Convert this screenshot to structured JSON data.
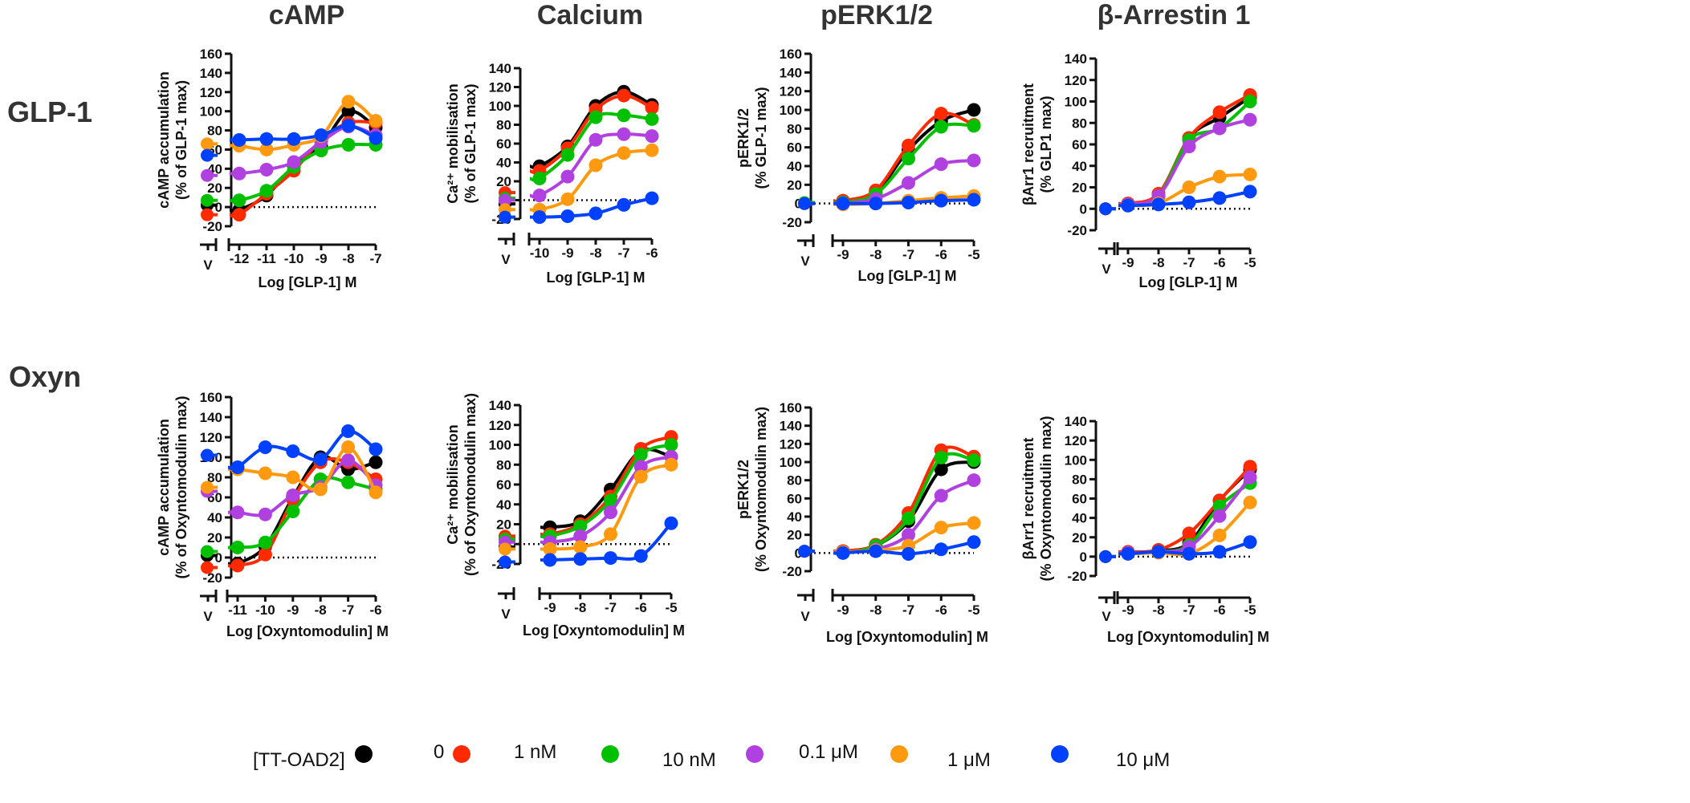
{
  "column_titles": [
    "cAMP",
    "Calcium",
    "pERK1/2",
    "β-Arrestin 1"
  ],
  "row_labels": [
    "GLP-1",
    "Oxyn"
  ],
  "legend": {
    "title": "[TT-OAD2]",
    "items": [
      {
        "label": "0",
        "color": "#000000"
      },
      {
        "label": "1 nM",
        "color": "#ff2a00"
      },
      {
        "label": "10 nM",
        "color": "#00c000"
      },
      {
        "label": "0.1 μM",
        "color": "#b040e0"
      },
      {
        "label": "1 μM",
        "color": "#ff9a10"
      },
      {
        "label": "10 μM",
        "color": "#0040ff"
      }
    ]
  },
  "chart_data": [
    {
      "type": "line",
      "ylabel": [
        "cAMP accumulation",
        "(% of GLP-1 max)"
      ],
      "xlabel": "Log [GLP-1] M",
      "vehicle_label": "V",
      "ylim": [
        -20,
        160
      ],
      "xticks": [
        -12,
        -11,
        -10,
        -9,
        -8,
        -7
      ],
      "vehicle": [
        2,
        -8,
        7,
        33,
        66,
        54
      ],
      "series": [
        [
          -3,
          12,
          43,
          64,
          100,
          83
        ],
        [
          -8,
          14,
          38,
          70,
          88,
          88
        ],
        [
          7,
          17,
          42,
          59,
          65,
          65
        ],
        [
          35,
          39,
          47,
          68,
          84,
          75
        ],
        [
          64,
          60,
          65,
          74,
          110,
          90
        ],
        [
          70,
          71,
          71,
          75,
          85,
          72
        ]
      ]
    },
    {
      "type": "line",
      "ylabel": [
        "Ca²⁺ mobilisation",
        "(% of GLP-1 max)"
      ],
      "xlabel": "Log [GLP-1] M",
      "vehicle_label": "V",
      "ylim": [
        -20,
        140
      ],
      "xticks": [
        -10,
        -9,
        -8,
        -7,
        -6
      ],
      "vehicle": [
        -4,
        8,
        2,
        0,
        -10,
        -18
      ],
      "series": [
        [
          36,
          57,
          100,
          115,
          101
        ],
        [
          31,
          55,
          96,
          111,
          98
        ],
        [
          23,
          48,
          88,
          90,
          86
        ],
        [
          5,
          25,
          64,
          70,
          68
        ],
        [
          -10,
          1,
          37,
          50,
          53
        ],
        [
          -18,
          -17,
          -14,
          -5,
          2
        ]
      ]
    },
    {
      "type": "line",
      "ylabel": [
        "pERK1/2",
        "(% GLP-1 max)"
      ],
      "xlabel": "Log [GLP-1] M",
      "vehicle_label": "V",
      "ylim": [
        -20,
        160
      ],
      "xticks": [
        -9,
        -8,
        -7,
        -6,
        -5
      ],
      "vehicle": [
        0,
        0,
        1,
        0,
        0,
        0
      ],
      "series": [
        [
          2,
          12,
          57,
          88,
          100
        ],
        [
          3,
          14,
          62,
          96,
          84
        ],
        [
          1,
          10,
          48,
          82,
          83
        ],
        [
          0,
          5,
          22,
          42,
          46
        ],
        [
          -1,
          0,
          3,
          6,
          8
        ],
        [
          0,
          0,
          1,
          3,
          4
        ]
      ]
    },
    {
      "type": "line",
      "ylabel": [
        "βArr1 recruitment",
        "(% GLP1 max)"
      ],
      "xlabel": "Log [GLP-1] M",
      "vehicle_label": "V",
      "ylim": [
        -20,
        140
      ],
      "xticks": [
        -9,
        -8,
        -7,
        -6,
        -5
      ],
      "vehicle": [
        0,
        0,
        0,
        0,
        0,
        0
      ],
      "series": [
        [
          4,
          12,
          66,
          85,
          104
        ],
        [
          5,
          14,
          66,
          90,
          106
        ],
        [
          4,
          12,
          64,
          75,
          100
        ],
        [
          4,
          12,
          58,
          75,
          83
        ],
        [
          3,
          5,
          20,
          30,
          32
        ],
        [
          3,
          4,
          6,
          10,
          16
        ]
      ]
    },
    {
      "type": "line",
      "ylabel": [
        "cAMP accumulation",
        "(% of Oxyntomodulin max)"
      ],
      "xlabel": "Log [Oxyntomodulin] M",
      "vehicle_label": "V",
      "ylim": [
        -20,
        160
      ],
      "xticks": [
        -11,
        -10,
        -9,
        -8,
        -7,
        -6
      ],
      "vehicle": [
        2,
        -10,
        6,
        66,
        70,
        102
      ],
      "series": [
        [
          -6,
          11,
          60,
          100,
          88,
          95
        ],
        [
          -8,
          3,
          58,
          95,
          95,
          78
        ],
        [
          10,
          15,
          46,
          78,
          75,
          68
        ],
        [
          45,
          43,
          62,
          70,
          97,
          72
        ],
        [
          88,
          84,
          80,
          68,
          110,
          65
        ],
        [
          90,
          110,
          106,
          98,
          126,
          108
        ]
      ]
    },
    {
      "type": "line",
      "ylabel": [
        "Ca²⁺ mobilisation",
        "(% of Oxyntomodulin max)"
      ],
      "xlabel": "Log [Oxyntomodulin] M",
      "vehicle_label": "V",
      "ylim": [
        -20,
        140
      ],
      "xticks": [
        -9,
        -8,
        -7,
        -6,
        -5
      ],
      "vehicle": [
        -3,
        8,
        5,
        2,
        -5,
        -18
      ],
      "series": [
        [
          17,
          23,
          55,
          94,
          88
        ],
        [
          10,
          20,
          48,
          96,
          108
        ],
        [
          8,
          18,
          44,
          90,
          100
        ],
        [
          2,
          8,
          32,
          78,
          88
        ],
        [
          -5,
          -3,
          10,
          68,
          80
        ],
        [
          -16,
          -15,
          -14,
          -12,
          21
        ]
      ]
    },
    {
      "type": "line",
      "ylabel": [
        "pERK1/2",
        "(% Oxyntomodulin max)"
      ],
      "xlabel": "Log [Oxyntomodulin] M",
      "vehicle_label": "V",
      "ylim": [
        -20,
        160
      ],
      "xticks": [
        -9,
        -8,
        -7,
        -6,
        -5
      ],
      "vehicle": [
        2,
        2,
        2,
        2,
        2,
        2
      ],
      "series": [
        [
          2,
          8,
          35,
          92,
          100
        ],
        [
          2,
          9,
          44,
          113,
          106
        ],
        [
          0,
          8,
          38,
          105,
          102
        ],
        [
          1,
          4,
          20,
          63,
          80
        ],
        [
          1,
          3,
          8,
          28,
          33
        ],
        [
          0,
          2,
          -1,
          4,
          12
        ]
      ]
    },
    {
      "type": "line",
      "ylabel": [
        "βArr1 recruitment",
        "(% Oxyntomodulin max)"
      ],
      "xlabel": "Log [Oxyntomodulin] M",
      "vehicle_label": "V",
      "ylim": [
        -20,
        140
      ],
      "xticks": [
        -9,
        -8,
        -7,
        -6,
        -5
      ],
      "vehicle": [
        0,
        0,
        0,
        0,
        0,
        0
      ],
      "series": [
        [
          4,
          6,
          14,
          58,
          90
        ],
        [
          5,
          7,
          24,
          58,
          93
        ],
        [
          3,
          5,
          12,
          52,
          76
        ],
        [
          4,
          5,
          10,
          42,
          82
        ],
        [
          3,
          4,
          3,
          22,
          56
        ],
        [
          3,
          5,
          3,
          5,
          15
        ]
      ]
    }
  ]
}
